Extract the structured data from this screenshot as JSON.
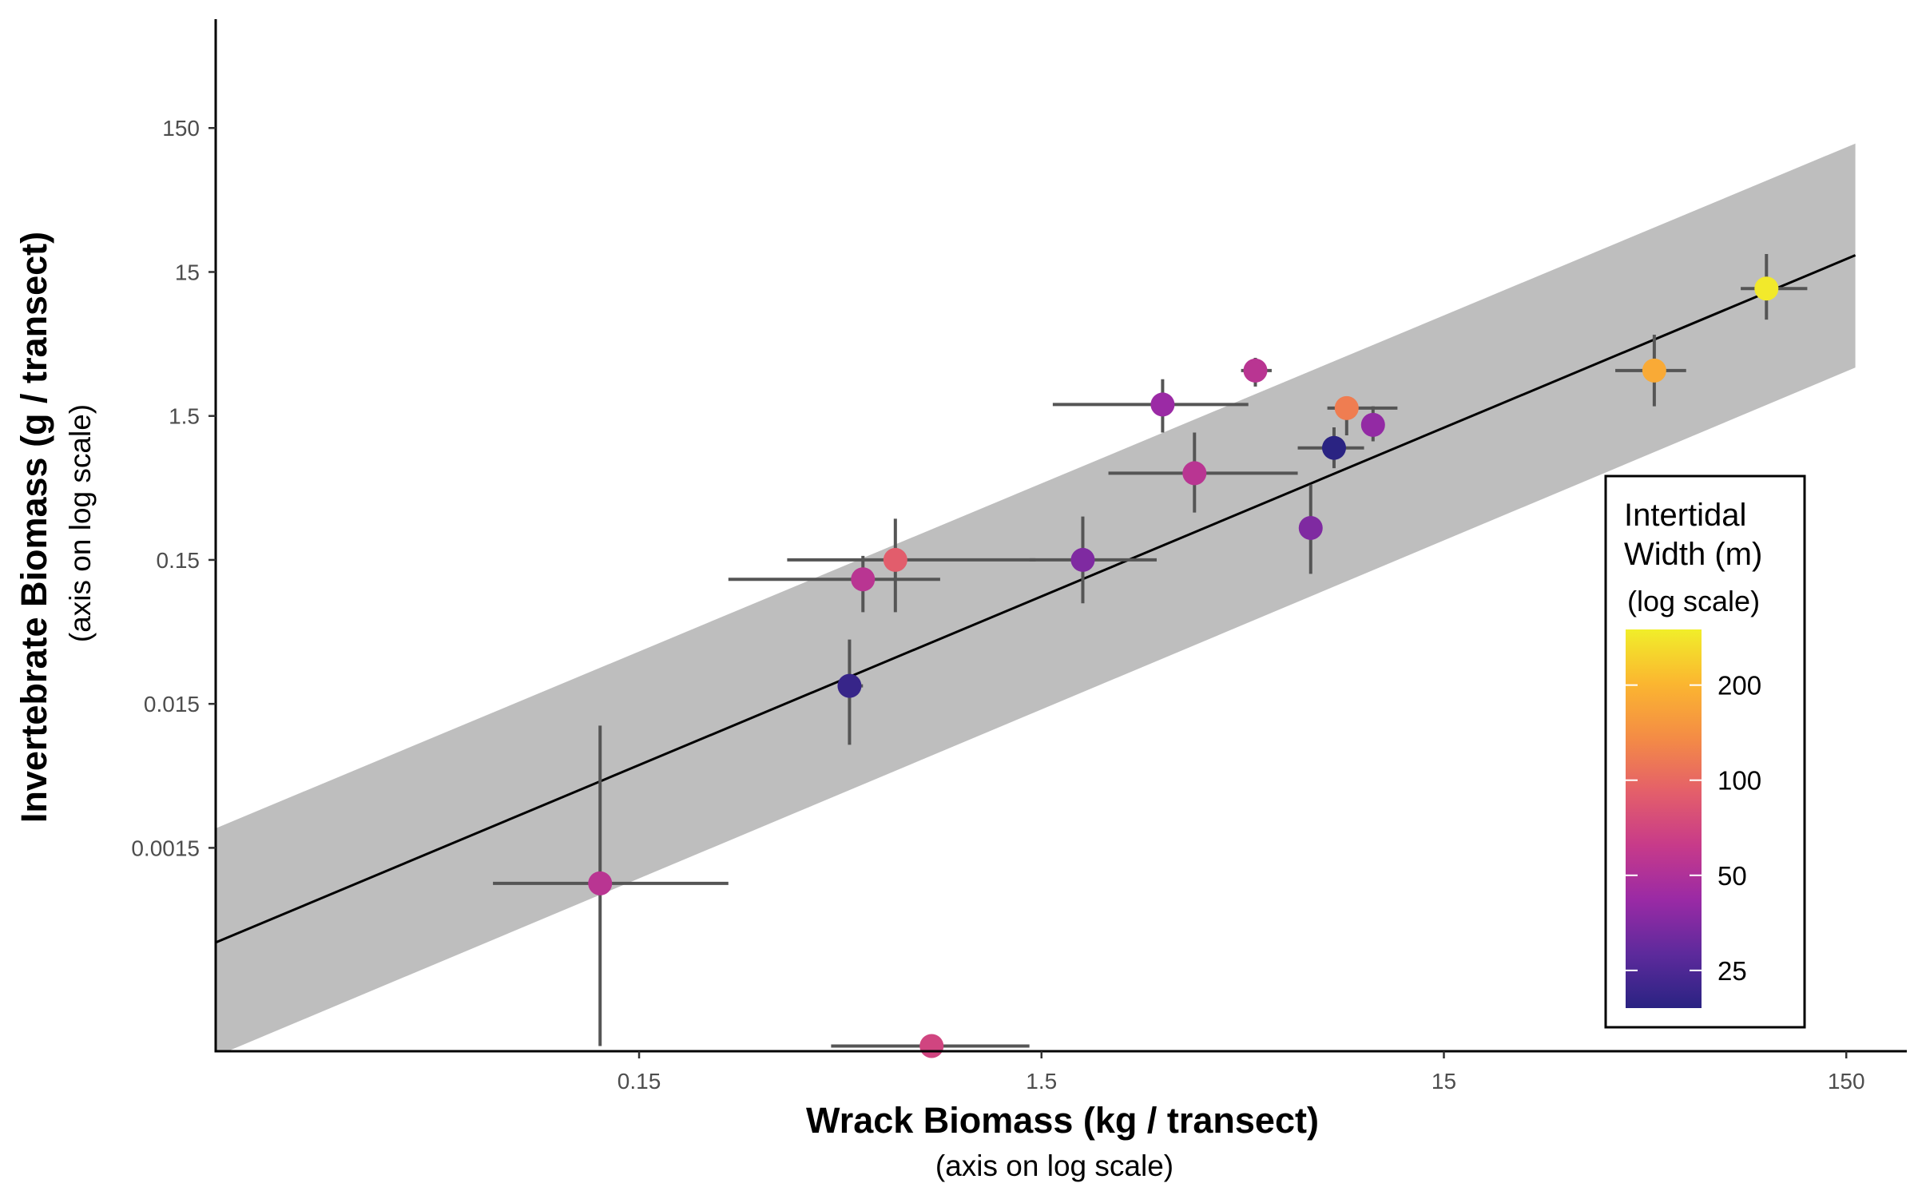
{
  "chart_data": {
    "type": "scatter",
    "x_scale": "log10",
    "y_scale": "log10",
    "xlabel": "Wrack Biomass (kg / transect)",
    "xlabel_sub": "(axis on log scale)",
    "ylabel": "Invertebrate Biomass (g / transect)",
    "ylabel_sub": "(axis on log scale)",
    "x_ticks": [
      {
        "value": 0.15,
        "label": "0.15"
      },
      {
        "value": 1.5,
        "label": "1.5"
      },
      {
        "value": 15,
        "label": "15"
      },
      {
        "value": 150,
        "label": "150"
      }
    ],
    "y_ticks": [
      {
        "value": 150,
        "label": "150"
      },
      {
        "value": 15,
        "label": "15"
      },
      {
        "value": 1.5,
        "label": "1.5"
      },
      {
        "value": 0.15,
        "label": "0.15"
      },
      {
        "value": 0.015,
        "label": "0.015"
      },
      {
        "value": 0.0015,
        "label": "0.0015"
      }
    ],
    "xlim": [
      0.0133,
      220
    ],
    "ylim": [
      5.8e-05,
      900
    ],
    "fit_line": {
      "x": [
        0.0133,
        158
      ],
      "y": [
        0.00033,
        19.6
      ]
    },
    "confidence_band": {
      "x": [
        0.0133,
        158
      ],
      "lower": [
        5.35e-05,
        3.25
      ],
      "upper": [
        0.00205,
        117
      ]
    },
    "points": [
      {
        "x": 0.12,
        "y": 0.00085,
        "xmin": 0.065,
        "xmax": 0.25,
        "ymin": 6.3e-05,
        "ymax": 0.0106,
        "width_m": 55
      },
      {
        "x": 0.8,
        "y": 6.3e-05,
        "xmin": 0.45,
        "xmax": 1.4,
        "ymin": null,
        "ymax": null,
        "width_m": 70
      },
      {
        "x": 0.5,
        "y": 0.02,
        "xmin": 0.47,
        "xmax": 0.54,
        "ymin": 0.0078,
        "ymax": 0.042,
        "width_m": 21
      },
      {
        "x": 0.54,
        "y": 0.11,
        "xmin": 0.25,
        "xmax": 0.84,
        "ymin": 0.065,
        "ymax": 0.16,
        "width_m": 55
      },
      {
        "x": 0.65,
        "y": 0.15,
        "xmin": 0.35,
        "xmax": 1.45,
        "ymin": 0.065,
        "ymax": 0.29,
        "width_m": 90
      },
      {
        "x": 1.9,
        "y": 0.15,
        "xmin": 1.4,
        "xmax": 2.9,
        "ymin": 0.075,
        "ymax": 0.3,
        "width_m": 35
      },
      {
        "x": 3.0,
        "y": 1.8,
        "xmin": 1.6,
        "xmax": 4.9,
        "ymin": 1.15,
        "ymax": 2.7,
        "width_m": 42
      },
      {
        "x": 3.6,
        "y": 0.6,
        "xmin": 2.2,
        "xmax": 6.5,
        "ymin": 0.32,
        "ymax": 1.15,
        "width_m": 55
      },
      {
        "x": 5.1,
        "y": 3.1,
        "xmin": 4.7,
        "xmax": 5.6,
        "ymin": 2.4,
        "ymax": 3.8,
        "width_m": 55
      },
      {
        "x": 7.0,
        "y": 0.25,
        "xmin": null,
        "xmax": null,
        "ymin": 0.12,
        "ymax": 0.5,
        "width_m": 35
      },
      {
        "x": 8.0,
        "y": 0.9,
        "xmin": 6.5,
        "xmax": 9.5,
        "ymin": 0.65,
        "ymax": 1.25,
        "width_m": 19
      },
      {
        "x": 8.6,
        "y": 1.7,
        "xmin": 7.7,
        "xmax": 11.5,
        "ymin": 1.1,
        "ymax": 2.0,
        "width_m": 120
      },
      {
        "x": 10.0,
        "y": 1.3,
        "xmin": null,
        "xmax": null,
        "ymin": 1.0,
        "ymax": 1.75,
        "width_m": 40
      },
      {
        "x": 50.0,
        "y": 3.1,
        "xmin": 40,
        "xmax": 60,
        "ymin": 1.75,
        "ymax": 5.5,
        "width_m": 180
      },
      {
        "x": 95.0,
        "y": 11.5,
        "xmin": 82,
        "xmax": 120,
        "ymin": 7.0,
        "ymax": 20,
        "width_m": 290
      }
    ],
    "legend": {
      "title_line1": "Intertidal",
      "title_line2": "Width (m)",
      "subtitle": "(log scale)",
      "placement": "bottom-right",
      "scale": "log10",
      "range": [
        19,
        300
      ],
      "ticks": [
        {
          "value": 25,
          "label": "25"
        },
        {
          "value": 50,
          "label": "50"
        },
        {
          "value": 100,
          "label": "100"
        },
        {
          "value": 200,
          "label": "200"
        }
      ],
      "colormap": [
        "#2a2382",
        "#5d2a9c",
        "#9a2aa5",
        "#c73a8a",
        "#e45f6a",
        "#f48c45",
        "#fbb630",
        "#f1ee2a"
      ]
    },
    "colors": {
      "band": "#bebebe",
      "fit_line": "#000000",
      "error_bar": "#555555"
    },
    "grid": false
  }
}
